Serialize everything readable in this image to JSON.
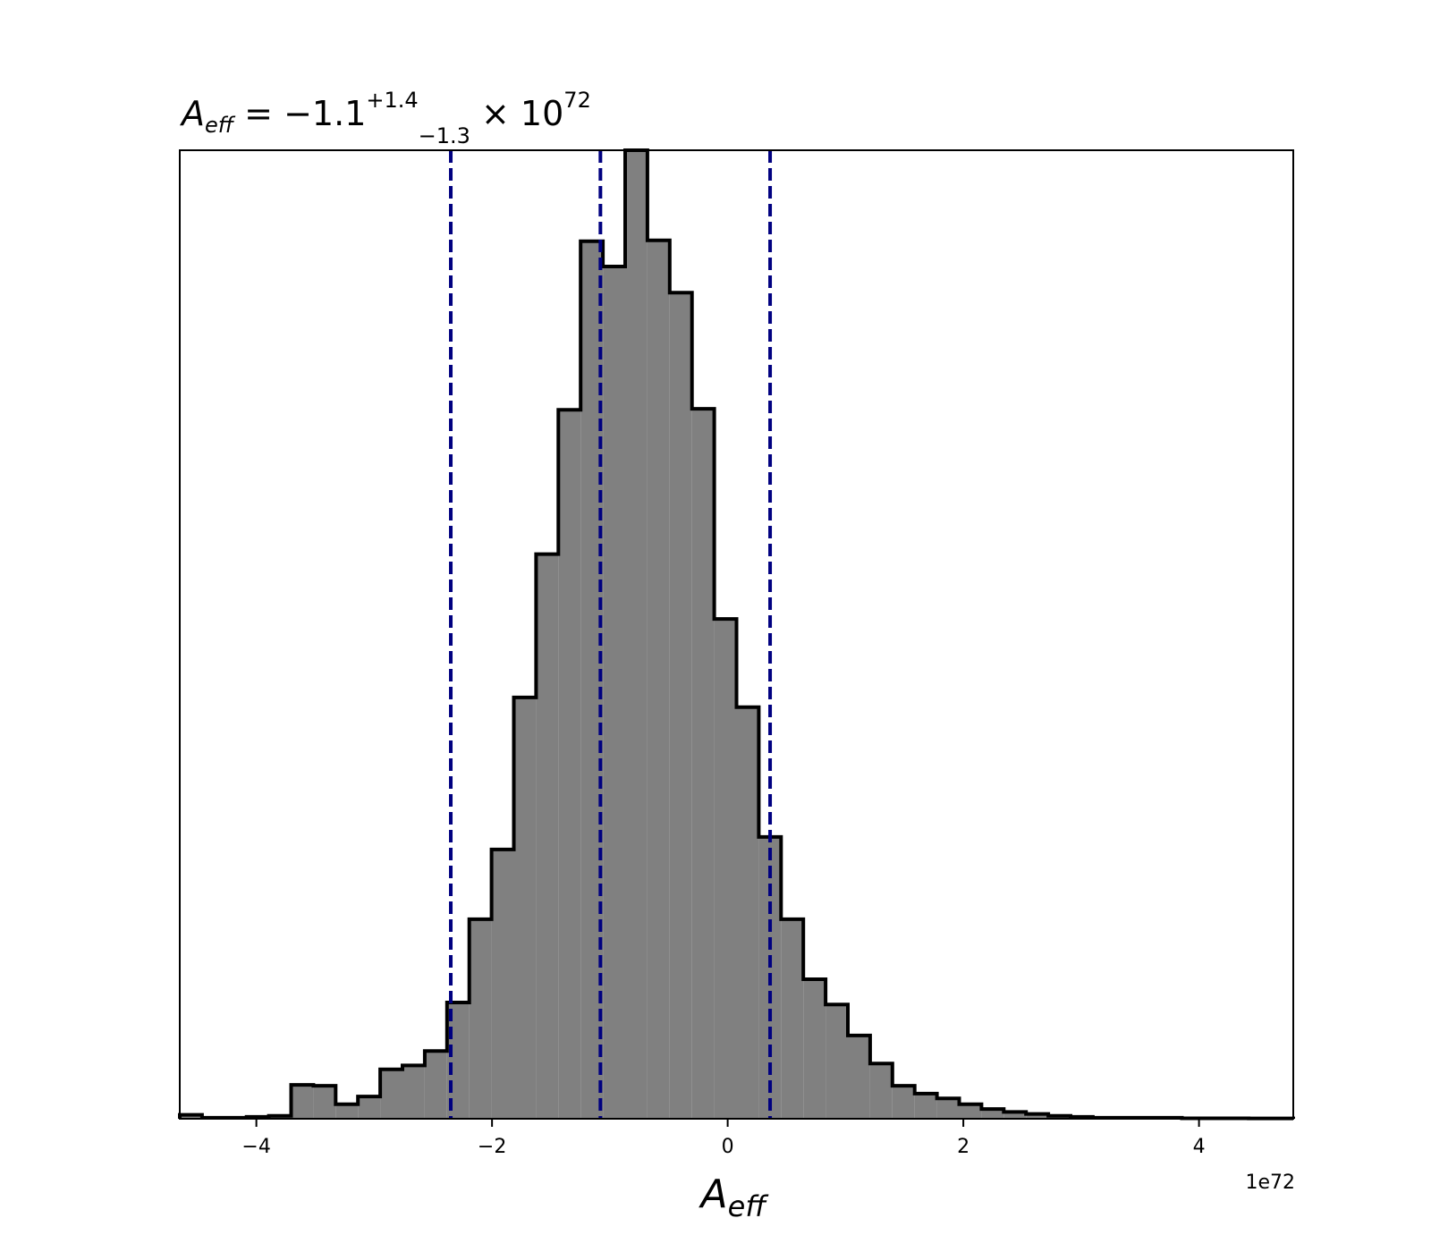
{
  "chart_data": {
    "type": "histogram",
    "title": {
      "symbol": "A",
      "symbol_sub": "eff",
      "equals": " = −1.1",
      "sup": "+1.4",
      "sub": "−1.3",
      "times": " × 10",
      "exp": "72"
    },
    "xlabel": {
      "symbol": "A",
      "sub": "eff"
    },
    "ylabel": "",
    "offset_label": "1e72",
    "xlim": [
      -4.65,
      4.8
    ],
    "ylim": [
      0,
      1.0
    ],
    "xticks": [
      -4,
      -2,
      0,
      2,
      4
    ],
    "xtick_labels": [
      "−4",
      "−2",
      "0",
      "2",
      "4"
    ],
    "yticks": [],
    "grid": false,
    "legend": "none",
    "bin_start": -4.65,
    "bin_width": 0.189,
    "counts": [
      0.004,
      0.001,
      0.001,
      0.002,
      0.003,
      0.035,
      0.034,
      0.015,
      0.023,
      0.051,
      0.055,
      0.07,
      0.12,
      0.206,
      0.278,
      0.435,
      0.583,
      0.732,
      0.906,
      0.88,
      1.0,
      0.907,
      0.853,
      0.733,
      0.516,
      0.425,
      0.291,
      0.206,
      0.144,
      0.118,
      0.086,
      0.057,
      0.034,
      0.026,
      0.021,
      0.015,
      0.01,
      0.007,
      0.005,
      0.003,
      0.002,
      0.001,
      0.001,
      0.001,
      0.001,
      0.0005,
      0.0005,
      0.0005,
      0.0003,
      0.0003
    ],
    "quantile_lines": [
      -2.35,
      -1.08,
      0.36
    ],
    "colors": {
      "fill": "#808080",
      "edge": "#000000",
      "lines": "#000080"
    }
  }
}
